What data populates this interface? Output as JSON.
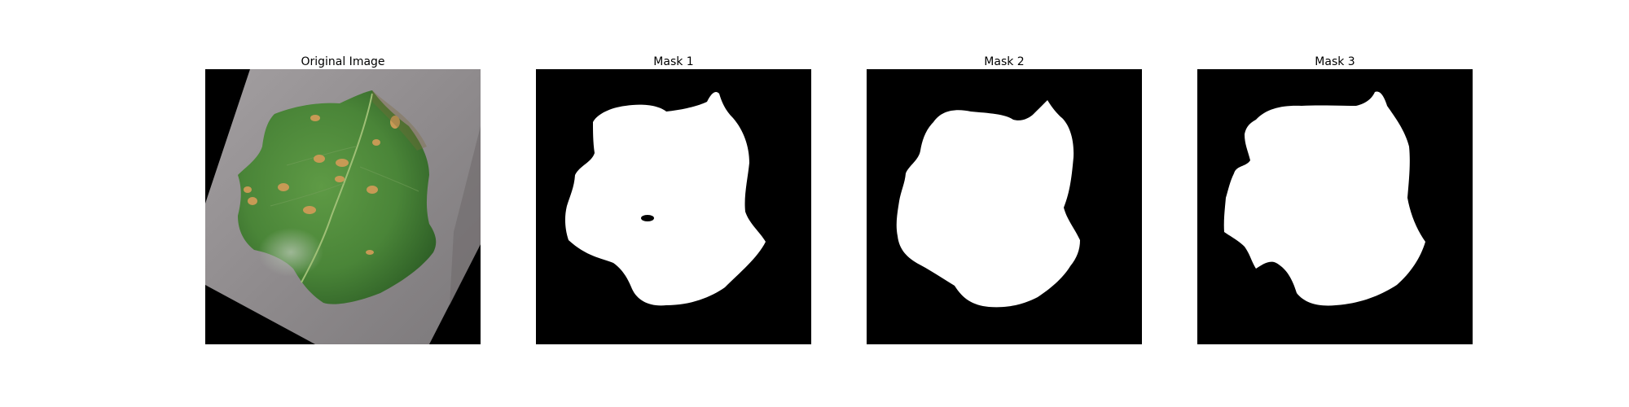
{
  "figure": {
    "panels": [
      {
        "title": "Original Image",
        "content": "leaf-photo"
      },
      {
        "title": "Mask 1",
        "content": "binary-mask"
      },
      {
        "title": "Mask 2",
        "content": "binary-mask"
      },
      {
        "title": "Mask 3",
        "content": "binary-mask"
      }
    ],
    "colors": {
      "background": "#ffffff",
      "canvas": "#000000",
      "mask_foreground": "#ffffff",
      "leaf": "#4f8a3c",
      "leaf_shadow": "#2f5e26",
      "paper": "#8d8a8b",
      "spot": "#c79a55"
    }
  }
}
